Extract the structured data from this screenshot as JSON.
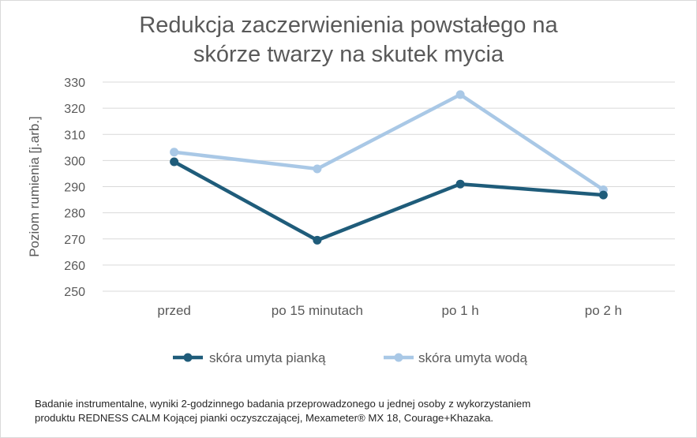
{
  "chart_data": {
    "type": "line",
    "title_lines": [
      "Redukcja zaczerwienienia powstałego na",
      "skórze twarzy na skutek mycia"
    ],
    "ylabel": "Poziom rumienia [j.arb.]",
    "xlabel": "",
    "categories": [
      "przed",
      "po 15 minutach",
      "po 1 h",
      "po 2 h"
    ],
    "ylim": [
      250,
      330
    ],
    "yticks": [
      250,
      260,
      270,
      280,
      290,
      300,
      310,
      320,
      330
    ],
    "grid": true,
    "legend_position": "bottom",
    "series": [
      {
        "name": "skóra umyta pianką",
        "color": "#1f5c7a",
        "values": [
          299.5,
          269.5,
          291,
          286.8
        ]
      },
      {
        "name": "skóra umyta wodą",
        "color": "#a9c8e6",
        "values": [
          303.2,
          296.8,
          325.2,
          288.8
        ]
      }
    ]
  },
  "footnote_lines": [
    "Badanie instrumentalne, wyniki 2-godzinnego badania przeprowadzonego u jednej osoby z wykorzystaniem",
    "produktu REDNESS CALM Kojącej pianki oczyszczającej, Mexameter® MX 18, Courage+Khazaka."
  ]
}
